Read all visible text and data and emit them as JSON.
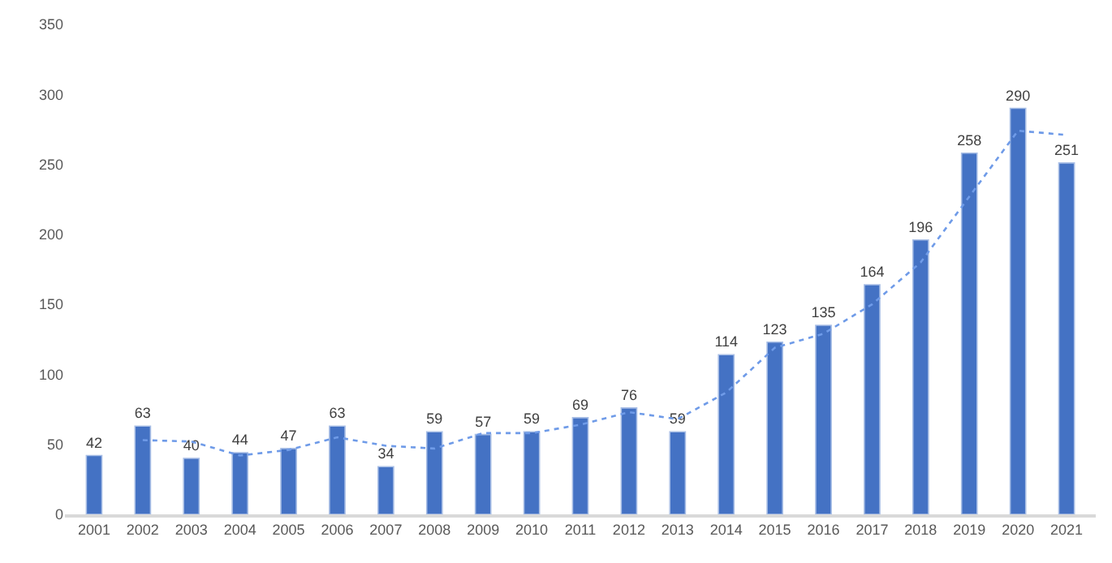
{
  "chart_data": {
    "type": "bar",
    "categories": [
      "2001",
      "2002",
      "2003",
      "2004",
      "2005",
      "2006",
      "2007",
      "2008",
      "2009",
      "2010",
      "2011",
      "2012",
      "2013",
      "2014",
      "2015",
      "2016",
      "2017",
      "2018",
      "2019",
      "2020",
      "2021"
    ],
    "series": [
      {
        "color": "#4472c4",
        "values": [
          42,
          63,
          40,
          44,
          47,
          63,
          34,
          59,
          57,
          59,
          69,
          76,
          59,
          114,
          123,
          135,
          164,
          196,
          258,
          290,
          251
        ],
        "value_labels": [
          "42",
          "63",
          "40",
          "44",
          "47",
          "63",
          "34",
          "59",
          "57",
          "59",
          "69",
          "76",
          "59",
          "114",
          "123",
          "135",
          "164",
          "196",
          "258",
          "290",
          "251"
        ]
      },
      {
        "type": "line",
        "color": "#6f9be8",
        "line_style": "dotted",
        "marker": "none",
        "values": [
          null,
          53,
          52,
          42,
          46,
          55,
          49,
          47,
          58,
          58,
          64,
          73,
          68,
          87,
          119,
          129,
          150,
          180,
          227,
          274,
          271
        ]
      }
    ],
    "ylim": [
      0,
      350
    ],
    "yticks": [
      0,
      50,
      100,
      150,
      200,
      250,
      300,
      350
    ]
  }
}
